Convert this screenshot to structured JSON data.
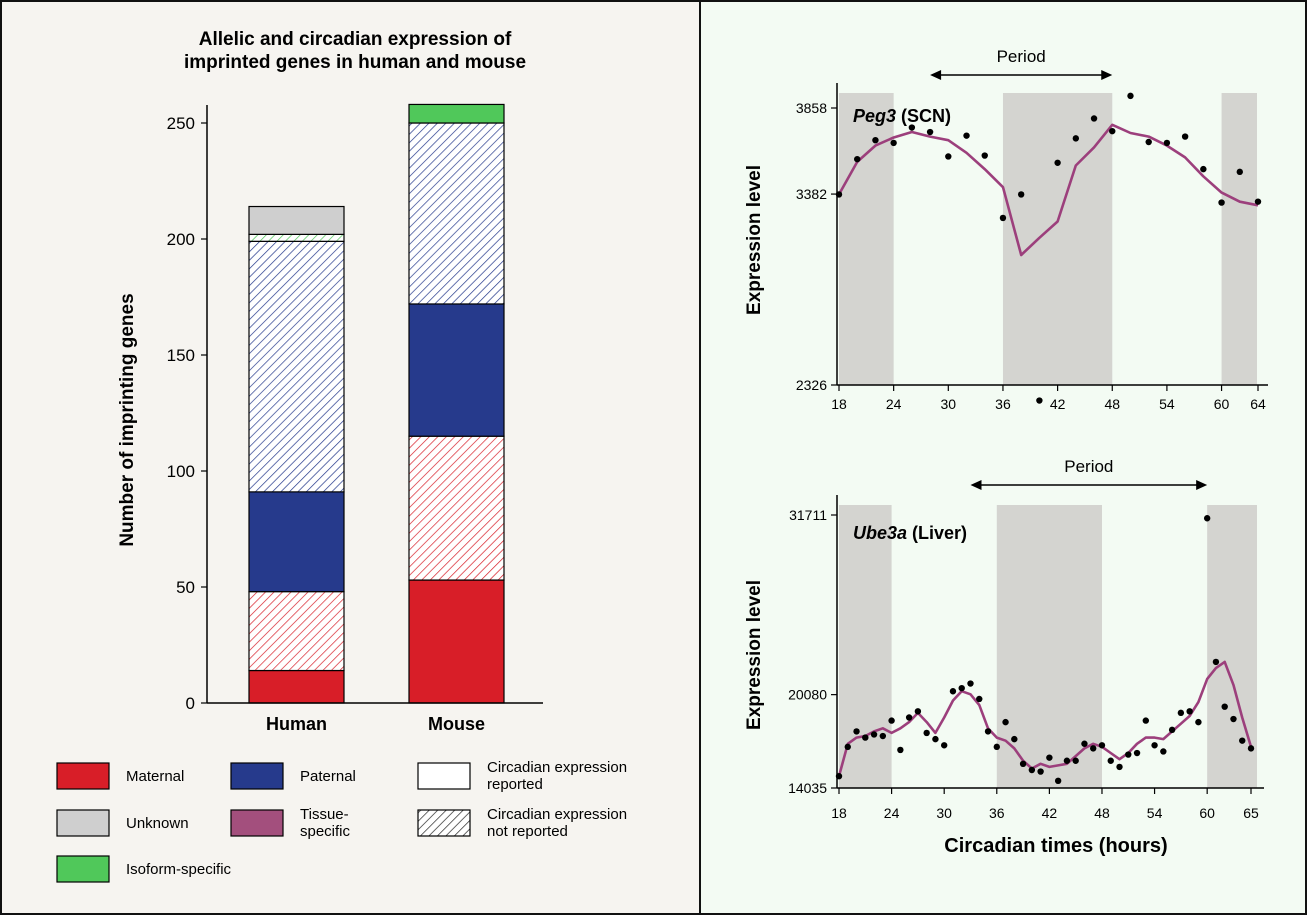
{
  "colors": {
    "left_bg": "#f6f4f0",
    "right_bg": "#f3fbf3",
    "maternal": "#d81e28",
    "paternal": "#263a8c",
    "unknown": "#cfcfcf",
    "isoform": "#50c85a",
    "tissue": "#a34f7d",
    "hatch_maternal": "#d81e28",
    "hatch_paternal": "#263a8c",
    "hatch_isoform": "#50c85a",
    "band": "#d4d4d0",
    "curve": "#9c3f7c",
    "dot": "#000000",
    "frame": "#111111"
  },
  "chart_data": [
    {
      "type": "bar",
      "stacked": true,
      "title": "Allelic and circadian expression of imprinted genes in human and mouse",
      "title_lines": [
        "Allelic and circadian expression of",
        "imprinted genes in human and mouse"
      ],
      "ylabel": "Number of imprinting genes",
      "xlabel": "",
      "ylim": [
        0,
        260
      ],
      "yticks": [
        0,
        50,
        100,
        150,
        200,
        250
      ],
      "categories": [
        "Human",
        "Mouse"
      ],
      "series": [
        {
          "name": "Maternal",
          "circadian": "reported",
          "color_key": "maternal",
          "values": [
            14,
            53
          ]
        },
        {
          "name": "Maternal",
          "circadian": "not reported",
          "color_key": "hatch_maternal",
          "values": [
            34,
            62
          ]
        },
        {
          "name": "Paternal",
          "circadian": "reported",
          "color_key": "paternal",
          "values": [
            43,
            57
          ]
        },
        {
          "name": "Paternal",
          "circadian": "not reported",
          "color_key": "hatch_paternal",
          "values": [
            108,
            78
          ]
        },
        {
          "name": "Isoform-specific",
          "circadian": "not reported",
          "color_key": "hatch_isoform",
          "values": [
            3,
            0
          ]
        },
        {
          "name": "Isoform-specific",
          "circadian": "reported",
          "color_key": "isoform",
          "values": [
            0,
            8
          ]
        },
        {
          "name": "Unknown",
          "circadian": "reported",
          "color_key": "unknown",
          "values": [
            12,
            0
          ]
        }
      ],
      "legend": [
        {
          "label": "Maternal",
          "swatch": "maternal",
          "hatched": false
        },
        {
          "label": "Paternal",
          "swatch": "paternal",
          "hatched": false
        },
        {
          "label": "Circadian expression reported",
          "label_lines": [
            "Circadian expression",
            "reported"
          ],
          "swatch": "white",
          "hatched": false
        },
        {
          "label": "Unknown",
          "swatch": "unknown",
          "hatched": false
        },
        {
          "label": "Tissue-specific",
          "label_lines": [
            "Tissue-",
            "specific"
          ],
          "swatch": "tissue",
          "hatched": false
        },
        {
          "label": "Circadian expression not reported",
          "label_lines": [
            "Circadian expression",
            "not reported"
          ],
          "swatch": "white",
          "hatched": true
        },
        {
          "label": "Isoform-specific",
          "swatch": "isoform",
          "hatched": false
        }
      ]
    },
    {
      "type": "line",
      "gene": "Peg3",
      "tissue": "(SCN)",
      "ylabel": "Expression level",
      "xlabel": "",
      "ylim": [
        2326,
        3858
      ],
      "yticks": [
        2326,
        3382,
        3858
      ],
      "xlim": [
        18,
        65
      ],
      "xticks": [
        18,
        24,
        30,
        36,
        42,
        48,
        54,
        60,
        64
      ],
      "dark_bands": [
        [
          18,
          24
        ],
        [
          36,
          48
        ],
        [
          60,
          66
        ]
      ],
      "period_label": "Period",
      "period": [
        28,
        48
      ],
      "points": [
        [
          18,
          3380
        ],
        [
          20,
          3575
        ],
        [
          22,
          3680
        ],
        [
          24,
          3665
        ],
        [
          26,
          3750
        ],
        [
          28,
          3725
        ],
        [
          30,
          3590
        ],
        [
          32,
          3705
        ],
        [
          34,
          3595
        ],
        [
          36,
          3250
        ],
        [
          38,
          3380
        ],
        [
          40,
          2240
        ],
        [
          42,
          3555
        ],
        [
          44,
          3690
        ],
        [
          46,
          3800
        ],
        [
          48,
          3730
        ],
        [
          50,
          3925
        ],
        [
          52,
          3670
        ],
        [
          54,
          3665
        ],
        [
          56,
          3700
        ],
        [
          58,
          3520
        ],
        [
          60,
          3335
        ],
        [
          62,
          3505
        ],
        [
          64,
          3340
        ]
      ],
      "fit": [
        [
          18,
          3380
        ],
        [
          20,
          3560
        ],
        [
          22,
          3650
        ],
        [
          24,
          3695
        ],
        [
          26,
          3725
        ],
        [
          28,
          3700
        ],
        [
          30,
          3680
        ],
        [
          32,
          3610
        ],
        [
          34,
          3520
        ],
        [
          36,
          3420
        ],
        [
          38,
          3045
        ],
        [
          40,
          3140
        ],
        [
          42,
          3230
        ],
        [
          44,
          3540
        ],
        [
          46,
          3640
        ],
        [
          48,
          3765
        ],
        [
          50,
          3720
        ],
        [
          52,
          3700
        ],
        [
          54,
          3650
        ],
        [
          56,
          3585
        ],
        [
          58,
          3480
        ],
        [
          60,
          3390
        ],
        [
          62,
          3340
        ],
        [
          64,
          3320
        ]
      ]
    },
    {
      "type": "line",
      "gene": "Ube3a",
      "tissue": "(Liver)",
      "ylabel": "Expression level",
      "xlabel": "Circadian times (hours)",
      "ylim": [
        14035,
        31711
      ],
      "yticks": [
        14035,
        20080,
        31711
      ],
      "xlim": [
        18,
        66
      ],
      "xticks": [
        18,
        24,
        30,
        36,
        42,
        48,
        54,
        60,
        65
      ],
      "dark_bands": [
        [
          18,
          24
        ],
        [
          36,
          48
        ],
        [
          60,
          66
        ]
      ],
      "period_label": "Period",
      "period": [
        33,
        60
      ],
      "points": [
        [
          18,
          14800
        ],
        [
          19,
          16700
        ],
        [
          20,
          17700
        ],
        [
          21,
          17300
        ],
        [
          22,
          17500
        ],
        [
          23,
          17400
        ],
        [
          24,
          18400
        ],
        [
          25,
          16500
        ],
        [
          26,
          18600
        ],
        [
          27,
          19000
        ],
        [
          28,
          17600
        ],
        [
          29,
          17200
        ],
        [
          30,
          16800
        ],
        [
          31,
          20300
        ],
        [
          32,
          20500
        ],
        [
          33,
          20800
        ],
        [
          34,
          19800
        ],
        [
          35,
          17700
        ],
        [
          36,
          16700
        ],
        [
          37,
          18300
        ],
        [
          38,
          17200
        ],
        [
          39,
          15600
        ],
        [
          40,
          15200
        ],
        [
          41,
          15100
        ],
        [
          42,
          16000
        ],
        [
          43,
          14500
        ],
        [
          44,
          15800
        ],
        [
          45,
          15800
        ],
        [
          46,
          16900
        ],
        [
          47,
          16600
        ],
        [
          48,
          16800
        ],
        [
          49,
          15800
        ],
        [
          50,
          15400
        ],
        [
          51,
          16200
        ],
        [
          52,
          16300
        ],
        [
          53,
          18400
        ],
        [
          54,
          16800
        ],
        [
          55,
          16400
        ],
        [
          56,
          17800
        ],
        [
          57,
          18900
        ],
        [
          58,
          19000
        ],
        [
          59,
          18300
        ],
        [
          60,
          31500
        ],
        [
          61,
          22200
        ],
        [
          62,
          19300
        ],
        [
          63,
          18500
        ],
        [
          64,
          17100
        ],
        [
          65,
          16600
        ]
      ],
      "fit": [
        [
          18,
          14800
        ],
        [
          19,
          16900
        ],
        [
          20,
          17300
        ],
        [
          21,
          17400
        ],
        [
          22,
          17700
        ],
        [
          23,
          17900
        ],
        [
          24,
          17600
        ],
        [
          25,
          17900
        ],
        [
          26,
          18300
        ],
        [
          27,
          18900
        ],
        [
          28,
          18300
        ],
        [
          29,
          17600
        ],
        [
          30,
          18600
        ],
        [
          31,
          19700
        ],
        [
          32,
          20300
        ],
        [
          33,
          20100
        ],
        [
          34,
          19400
        ],
        [
          35,
          17900
        ],
        [
          36,
          17300
        ],
        [
          37,
          17100
        ],
        [
          38,
          16600
        ],
        [
          39,
          15800
        ],
        [
          40,
          15300
        ],
        [
          41,
          15600
        ],
        [
          42,
          15400
        ],
        [
          43,
          15500
        ],
        [
          44,
          15600
        ],
        [
          45,
          16100
        ],
        [
          46,
          16600
        ],
        [
          47,
          16900
        ],
        [
          48,
          16700
        ],
        [
          49,
          16300
        ],
        [
          50,
          15900
        ],
        [
          51,
          16300
        ],
        [
          52,
          16900
        ],
        [
          53,
          17300
        ],
        [
          54,
          17300
        ],
        [
          55,
          17200
        ],
        [
          56,
          17700
        ],
        [
          57,
          18200
        ],
        [
          58,
          18700
        ],
        [
          59,
          19600
        ],
        [
          60,
          21100
        ],
        [
          61,
          21800
        ],
        [
          62,
          22200
        ],
        [
          63,
          20700
        ],
        [
          64,
          18600
        ],
        [
          65,
          16700
        ]
      ]
    }
  ]
}
